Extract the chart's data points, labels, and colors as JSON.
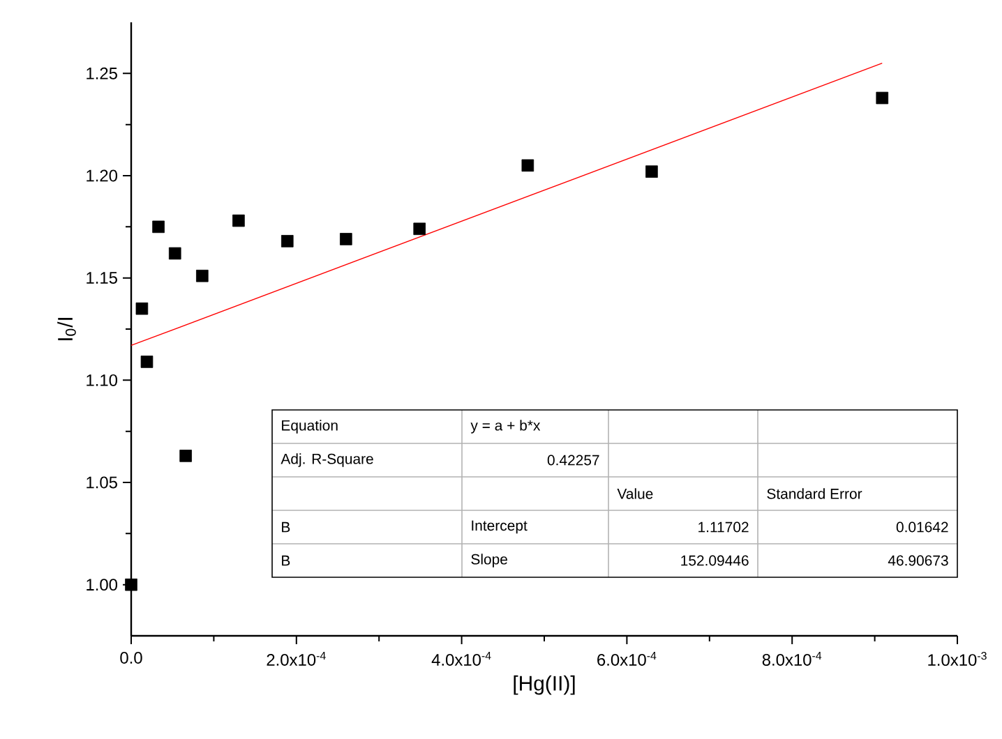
{
  "chart_data": {
    "type": "scatter",
    "xlabel": "[Hg(II)]",
    "ylabel": "I$_{0}$/I",
    "xlim": [
      0,
      0.001
    ],
    "ylim": [
      0.975,
      1.275
    ],
    "xticks": [
      {
        "value": 0,
        "label": "0.0"
      },
      {
        "value": 0.0002,
        "label": "2.0x10$^{-4}$"
      },
      {
        "value": 0.0004,
        "label": "4.0x10$^{-4}$"
      },
      {
        "value": 0.0006,
        "label": "6.0x10$^{-4}$"
      },
      {
        "value": 0.0008,
        "label": "8.0x10$^{-4}$"
      },
      {
        "value": 0.001,
        "label": "1.0x10$^{-3}$"
      }
    ],
    "yticks": [
      {
        "value": 1.0,
        "label": "1.00"
      },
      {
        "value": 1.05,
        "label": "1.05"
      },
      {
        "value": 1.1,
        "label": "1.10"
      },
      {
        "value": 1.15,
        "label": "1.15"
      },
      {
        "value": 1.2,
        "label": "1.20"
      },
      {
        "value": 1.25,
        "label": "1.25"
      }
    ],
    "marker": "square",
    "series": [
      {
        "color": "#000000",
        "x": [
          0,
          1.3e-05,
          1.9e-05,
          3.3e-05,
          5.3e-05,
          6.6e-05,
          8.6e-05,
          0.00013,
          0.000189,
          0.00026,
          0.000349,
          0.00048,
          0.00063,
          0.000909
        ],
        "values": [
          1.0,
          1.135,
          1.109,
          1.175,
          1.162,
          1.063,
          1.151,
          1.178,
          1.168,
          1.169,
          1.174,
          1.205,
          1.202,
          1.238
        ]
      },
      {
        "type": "line",
        "marker": "none",
        "color": "#ff0000",
        "line_style": "solid",
        "x": [
          0,
          0.000909
        ],
        "values": [
          1.117,
          1.255
        ]
      }
    ],
    "annotations": [
      "Equation",
      "y = a + b*x",
      "Adj. R-Square",
      "0.42257",
      "Value",
      "Standard Error",
      "B",
      "Intercept",
      "1.11702",
      "0.01642",
      "B",
      "Slope",
      "152.09446",
      "46.90673"
    ]
  }
}
